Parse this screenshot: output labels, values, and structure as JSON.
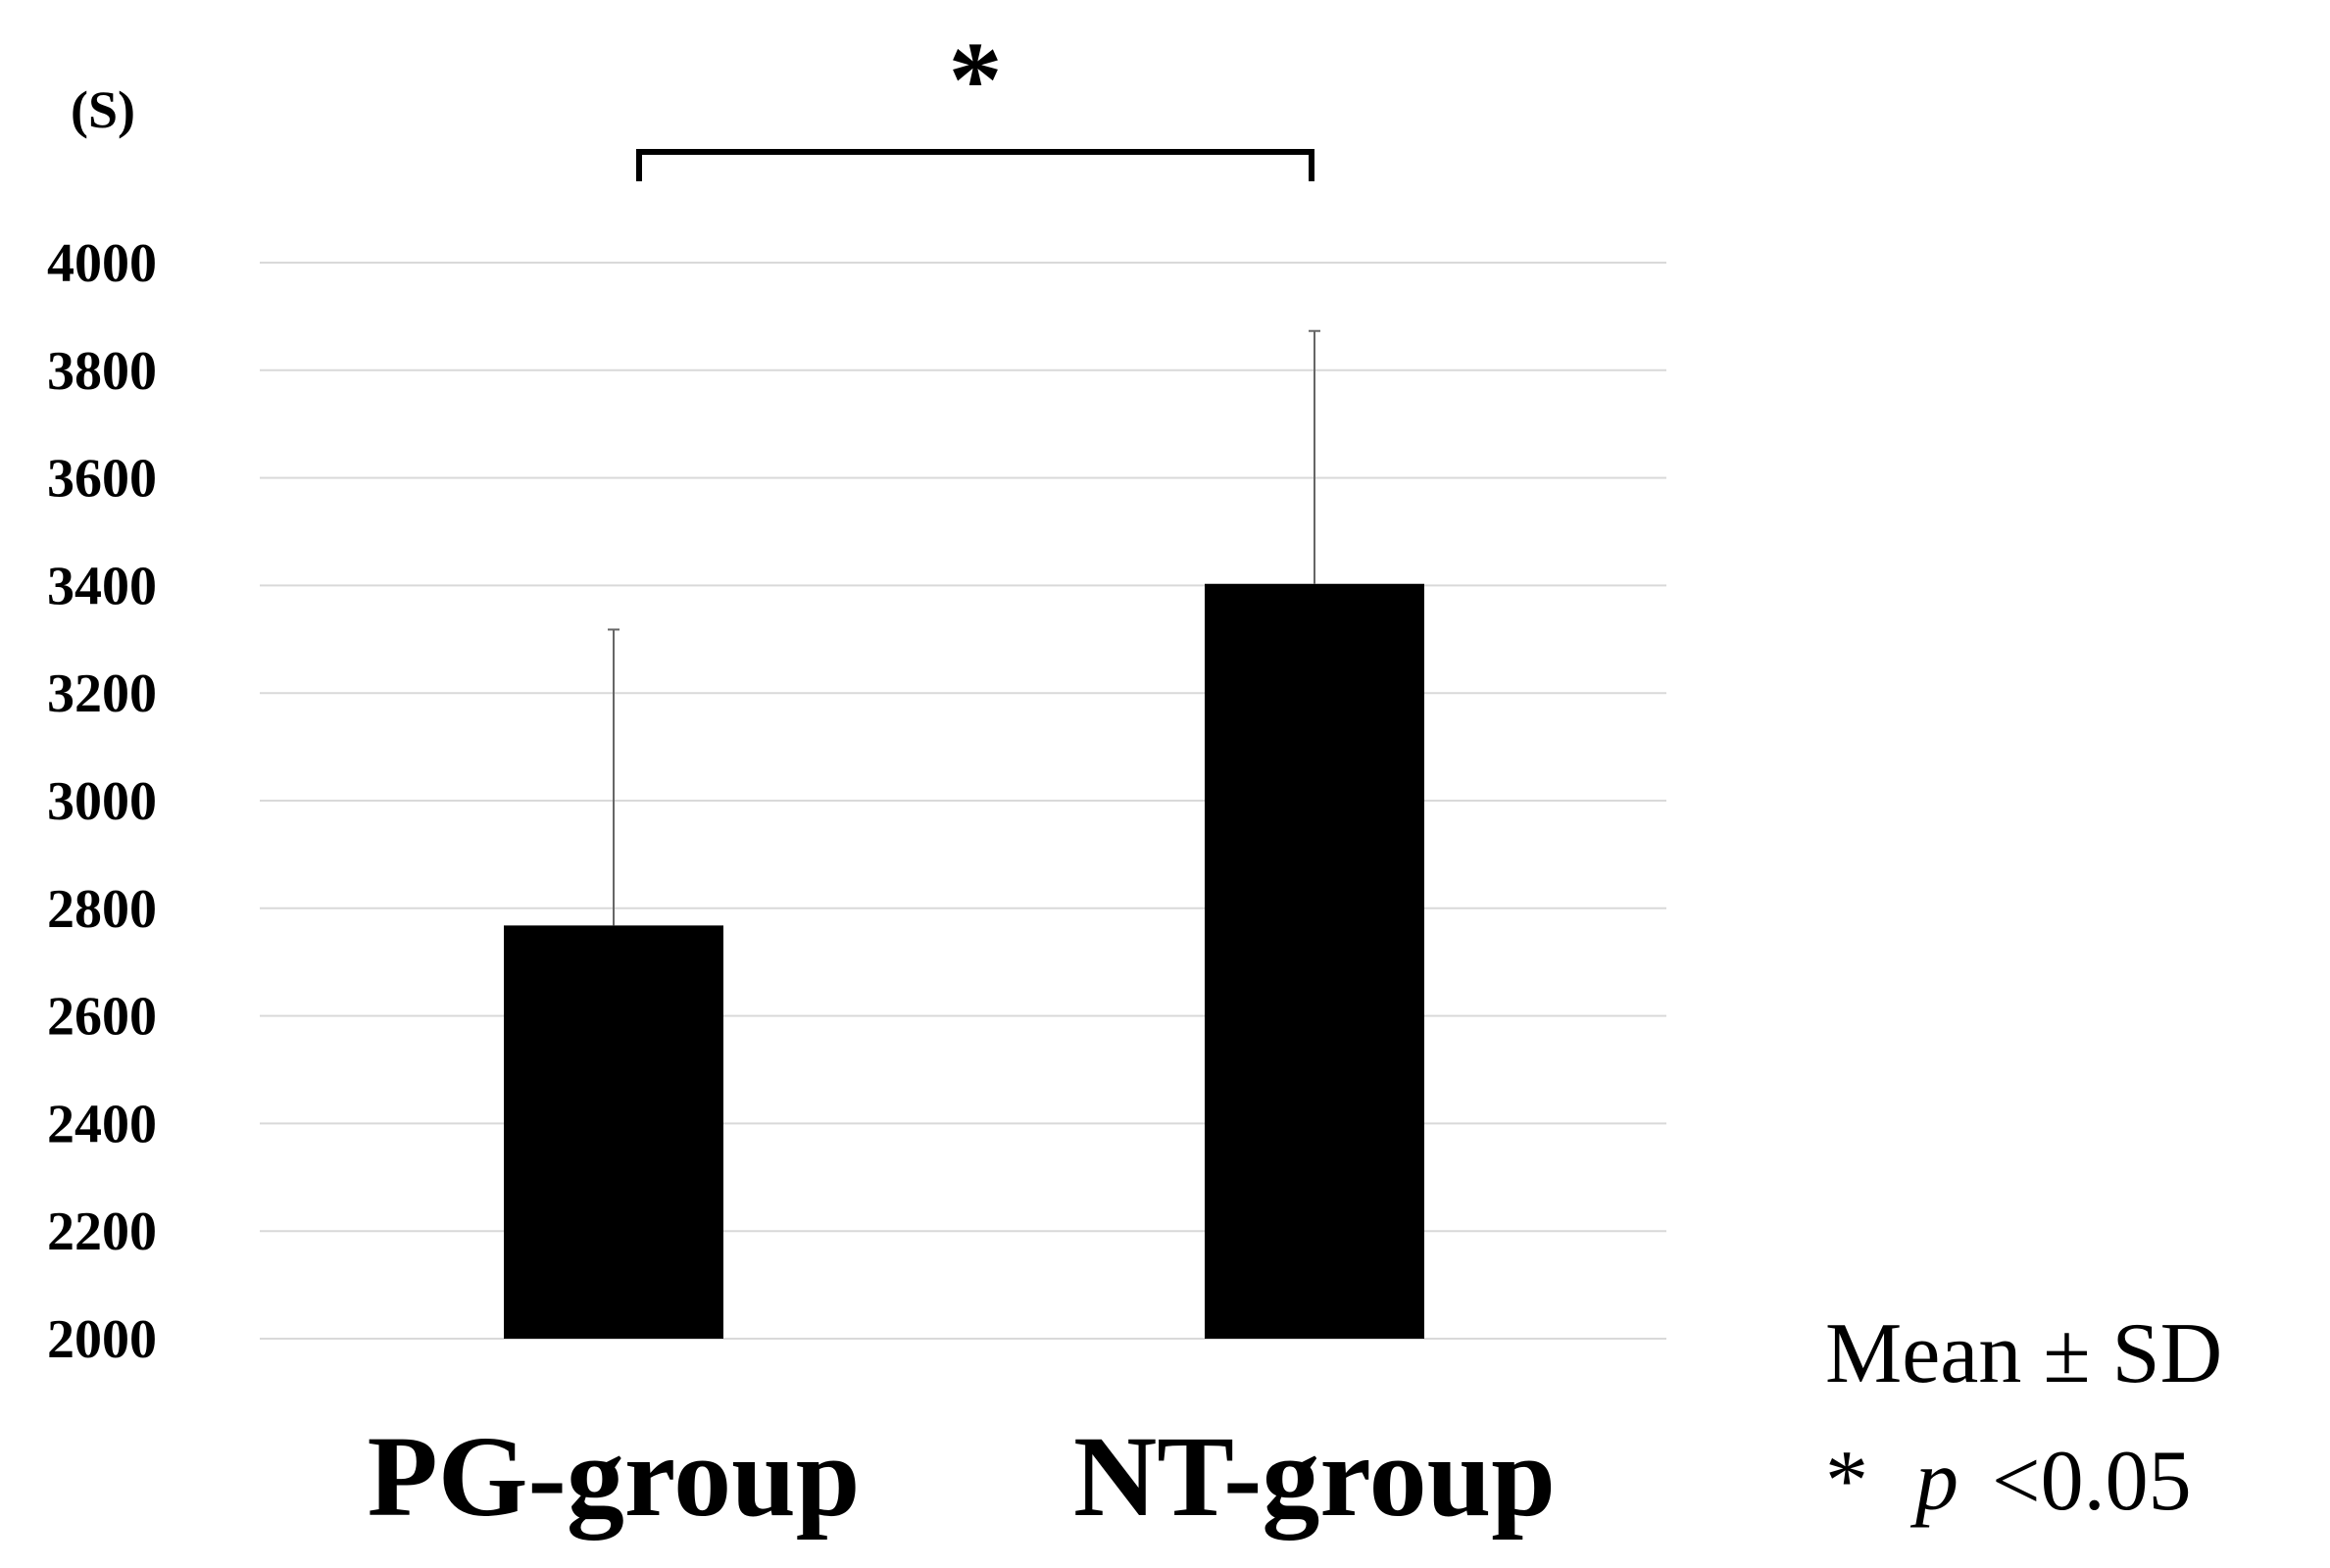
{
  "chart_data": {
    "type": "bar",
    "unit_label": "(S)",
    "categories": [
      "PG-group",
      "NT-group"
    ],
    "values": [
      2768,
      3403
    ],
    "error": [
      550,
      470
    ],
    "error_type": "Mean ± SD",
    "ylim": [
      2000,
      4000
    ],
    "yticks": [
      "2000",
      "2200",
      "2400",
      "2600",
      "2800",
      "3000",
      "3200",
      "3400",
      "3600",
      "3800",
      "4000"
    ],
    "grid": true,
    "bar_color": "#000000",
    "grid_color": "#d9d9d9",
    "significance": {
      "between": [
        "PG-group",
        "NT-group"
      ],
      "marker": "*"
    },
    "notes": {
      "mean_sd": "Mean ± SD",
      "p_star": "*",
      "p_letter": "p",
      "p_value": "<0.05"
    }
  }
}
